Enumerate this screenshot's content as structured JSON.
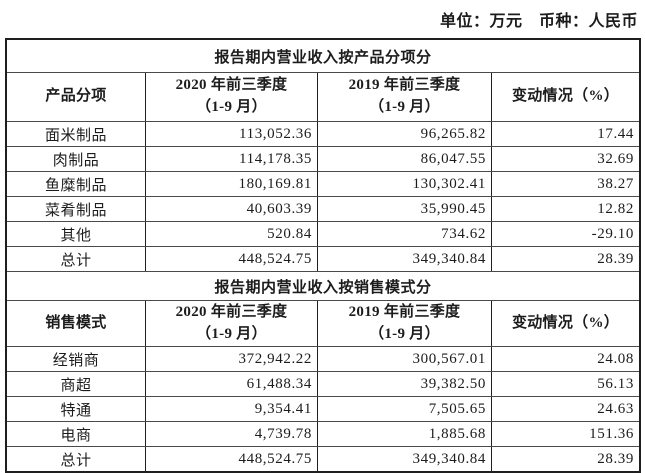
{
  "note": "单位：万元　币种：人民币",
  "sections": [
    {
      "title": "报告期内营业收入按产品分项分",
      "header": {
        "col1": "产品分项",
        "col2_line1": "2020 年前三季度",
        "col2_line2": "（1-9 月）",
        "col3_line1": "2019 年前三季度",
        "col3_line2": "（1-9 月）",
        "col4": "变动情况（%）"
      },
      "rows": [
        {
          "label": "面米制品",
          "v2020": "113,052.36",
          "v2019": "96,265.82",
          "change": "17.44"
        },
        {
          "label": "肉制品",
          "v2020": "114,178.35",
          "v2019": "86,047.55",
          "change": "32.69"
        },
        {
          "label": "鱼糜制品",
          "v2020": "180,169.81",
          "v2019": "130,302.41",
          "change": "38.27"
        },
        {
          "label": "菜肴制品",
          "v2020": "40,603.39",
          "v2019": "35,990.45",
          "change": "12.82"
        },
        {
          "label": "其他",
          "v2020": "520.84",
          "v2019": "734.62",
          "change": "-29.10"
        },
        {
          "label": "总计",
          "v2020": "448,524.75",
          "v2019": "349,340.84",
          "change": "28.39"
        }
      ]
    },
    {
      "title": "报告期内营业收入按销售模式分",
      "header": {
        "col1": "销售模式",
        "col2_line1": "2020 年前三季度",
        "col2_line2": "（1-9 月）",
        "col3_line1": "2019 年前三季度",
        "col3_line2": "（1-9 月）",
        "col4": "变动情况（%）"
      },
      "rows": [
        {
          "label": "经销商",
          "v2020": "372,942.22",
          "v2019": "300,567.01",
          "change": "24.08"
        },
        {
          "label": "商超",
          "v2020": "61,488.34",
          "v2019": "39,382.50",
          "change": "56.13"
        },
        {
          "label": "特通",
          "v2020": "9,354.41",
          "v2019": "7,505.65",
          "change": "24.63"
        },
        {
          "label": "电商",
          "v2020": "4,739.78",
          "v2019": "1,885.68",
          "change": "151.36"
        },
        {
          "label": "总计",
          "v2020": "448,524.75",
          "v2019": "349,340.84",
          "change": "28.39"
        }
      ]
    }
  ]
}
